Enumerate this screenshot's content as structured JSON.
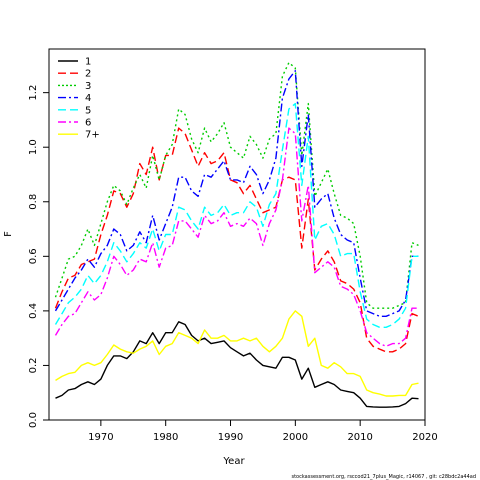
{
  "chart_data": {
    "type": "line",
    "xlabel": "Year",
    "ylabel": "F",
    "xlim": [
      1962,
      2020
    ],
    "ylim": [
      0,
      1.36
    ],
    "x_ticks": [
      1970,
      1980,
      1990,
      2000,
      2010,
      2020
    ],
    "y_ticks": [
      0.0,
      0.2,
      0.4,
      0.6,
      0.8,
      1.0,
      1.2
    ],
    "y_tick_labels": [
      "0.0",
      "0.2",
      "0.4",
      "0.6",
      "0.8",
      "1.0",
      "1.2"
    ],
    "legend_position": "top-left",
    "grid": false,
    "footer": "stockassessment.org,  rsccod21_7plus_Magic,  r14067 ,  git:  c28bdc2a44ad",
    "x": [
      1963,
      1964,
      1965,
      1966,
      1967,
      1968,
      1969,
      1970,
      1971,
      1972,
      1973,
      1974,
      1975,
      1976,
      1977,
      1978,
      1979,
      1980,
      1981,
      1982,
      1983,
      1984,
      1985,
      1986,
      1987,
      1988,
      1989,
      1990,
      1991,
      1992,
      1993,
      1994,
      1995,
      1996,
      1997,
      1998,
      1999,
      2000,
      2001,
      2002,
      2003,
      2004,
      2005,
      2006,
      2007,
      2008,
      2009,
      2010,
      2011,
      2012,
      2013,
      2014,
      2015,
      2016,
      2017,
      2018,
      2019
    ],
    "series": [
      {
        "name": "1",
        "color": "#000000",
        "dash": "solid",
        "values": [
          0.08,
          0.09,
          0.11,
          0.115,
          0.13,
          0.14,
          0.13,
          0.15,
          0.2,
          0.235,
          0.235,
          0.225,
          0.25,
          0.29,
          0.28,
          0.32,
          0.28,
          0.32,
          0.32,
          0.36,
          0.35,
          0.31,
          0.29,
          0.3,
          0.28,
          0.285,
          0.29,
          0.265,
          0.25,
          0.235,
          0.245,
          0.22,
          0.2,
          0.195,
          0.19,
          0.23,
          0.23,
          0.22,
          0.15,
          0.19,
          0.12,
          0.13,
          0.14,
          0.13,
          0.11,
          0.105,
          0.1,
          0.08,
          0.05,
          0.048,
          0.047,
          0.047,
          0.048,
          0.05,
          0.06,
          0.08,
          0.078
        ]
      },
      {
        "name": "2",
        "color": "#ff0000",
        "dash": "8,4",
        "values": [
          0.41,
          0.47,
          0.52,
          0.53,
          0.57,
          0.58,
          0.59,
          0.68,
          0.75,
          0.84,
          0.83,
          0.78,
          0.83,
          0.94,
          0.9,
          1.0,
          0.88,
          0.97,
          0.97,
          1.07,
          1.05,
          0.99,
          0.93,
          0.98,
          0.94,
          0.95,
          0.98,
          0.88,
          0.87,
          0.83,
          0.86,
          0.81,
          0.76,
          0.77,
          0.78,
          0.88,
          0.89,
          0.88,
          0.63,
          0.81,
          0.55,
          0.59,
          0.62,
          0.58,
          0.51,
          0.5,
          0.48,
          0.43,
          0.3,
          0.27,
          0.26,
          0.25,
          0.25,
          0.26,
          0.28,
          0.39,
          0.38
        ]
      },
      {
        "name": "3",
        "color": "#00cc00",
        "dash": "2,3",
        "values": [
          0.45,
          0.52,
          0.59,
          0.6,
          0.64,
          0.7,
          0.64,
          0.72,
          0.8,
          0.86,
          0.84,
          0.79,
          0.85,
          0.9,
          0.85,
          0.97,
          0.88,
          0.97,
          1.01,
          1.14,
          1.12,
          1.03,
          0.98,
          1.07,
          1.02,
          1.05,
          1.09,
          1.0,
          0.98,
          0.96,
          1.04,
          1.01,
          0.96,
          1.03,
          1.05,
          1.26,
          1.31,
          1.29,
          0.97,
          1.16,
          0.82,
          0.87,
          0.92,
          0.83,
          0.75,
          0.74,
          0.72,
          0.6,
          0.43,
          0.41,
          0.41,
          0.41,
          0.41,
          0.42,
          0.43,
          0.65,
          0.64
        ]
      },
      {
        "name": "4",
        "color": "#0000ff",
        "dash": "8,3,2,3",
        "values": [
          0.4,
          0.44,
          0.48,
          0.52,
          0.55,
          0.59,
          0.56,
          0.61,
          0.64,
          0.7,
          0.68,
          0.62,
          0.64,
          0.69,
          0.65,
          0.75,
          0.66,
          0.72,
          0.78,
          0.89,
          0.89,
          0.84,
          0.82,
          0.9,
          0.89,
          0.92,
          0.95,
          0.88,
          0.88,
          0.87,
          0.93,
          0.9,
          0.83,
          0.88,
          0.96,
          1.18,
          1.25,
          1.28,
          0.93,
          1.12,
          0.78,
          0.81,
          0.83,
          0.74,
          0.68,
          0.66,
          0.65,
          0.52,
          0.4,
          0.39,
          0.38,
          0.38,
          0.39,
          0.4,
          0.44,
          0.6,
          0.6
        ]
      },
      {
        "name": "5",
        "color": "#00ffff",
        "dash": "8,4",
        "values": [
          0.35,
          0.39,
          0.43,
          0.45,
          0.48,
          0.53,
          0.5,
          0.53,
          0.58,
          0.65,
          0.62,
          0.58,
          0.61,
          0.65,
          0.63,
          0.7,
          0.62,
          0.68,
          0.68,
          0.78,
          0.77,
          0.73,
          0.7,
          0.78,
          0.75,
          0.76,
          0.79,
          0.75,
          0.76,
          0.76,
          0.8,
          0.78,
          0.71,
          0.79,
          0.83,
          0.99,
          1.14,
          1.16,
          0.86,
          1.04,
          0.66,
          0.71,
          0.72,
          0.68,
          0.6,
          0.61,
          0.61,
          0.47,
          0.37,
          0.35,
          0.34,
          0.34,
          0.35,
          0.37,
          0.41,
          0.6,
          0.6
        ]
      },
      {
        "name": "6",
        "color": "#ff00ff",
        "dash": "8,3,2,3",
        "values": [
          0.31,
          0.35,
          0.38,
          0.39,
          0.43,
          0.47,
          0.44,
          0.46,
          0.52,
          0.6,
          0.57,
          0.53,
          0.55,
          0.59,
          0.58,
          0.65,
          0.56,
          0.63,
          0.64,
          0.73,
          0.73,
          0.7,
          0.67,
          0.75,
          0.72,
          0.73,
          0.76,
          0.71,
          0.72,
          0.71,
          0.74,
          0.72,
          0.64,
          0.72,
          0.77,
          0.88,
          1.07,
          1.05,
          0.73,
          0.86,
          0.54,
          0.56,
          0.58,
          0.56,
          0.49,
          0.48,
          0.46,
          0.4,
          0.32,
          0.3,
          0.28,
          0.27,
          0.28,
          0.28,
          0.3,
          0.41,
          0.41
        ]
      },
      {
        "name": "7+",
        "color": "#ffff00",
        "dash": "solid",
        "values": [
          0.145,
          0.16,
          0.17,
          0.175,
          0.2,
          0.21,
          0.2,
          0.21,
          0.24,
          0.275,
          0.26,
          0.25,
          0.245,
          0.26,
          0.27,
          0.29,
          0.24,
          0.27,
          0.28,
          0.32,
          0.31,
          0.3,
          0.28,
          0.33,
          0.3,
          0.3,
          0.31,
          0.29,
          0.29,
          0.3,
          0.29,
          0.3,
          0.27,
          0.25,
          0.27,
          0.3,
          0.37,
          0.4,
          0.38,
          0.27,
          0.3,
          0.2,
          0.19,
          0.21,
          0.195,
          0.17,
          0.17,
          0.16,
          0.11,
          0.1,
          0.095,
          0.088,
          0.088,
          0.09,
          0.09,
          0.13,
          0.135
        ]
      }
    ]
  }
}
